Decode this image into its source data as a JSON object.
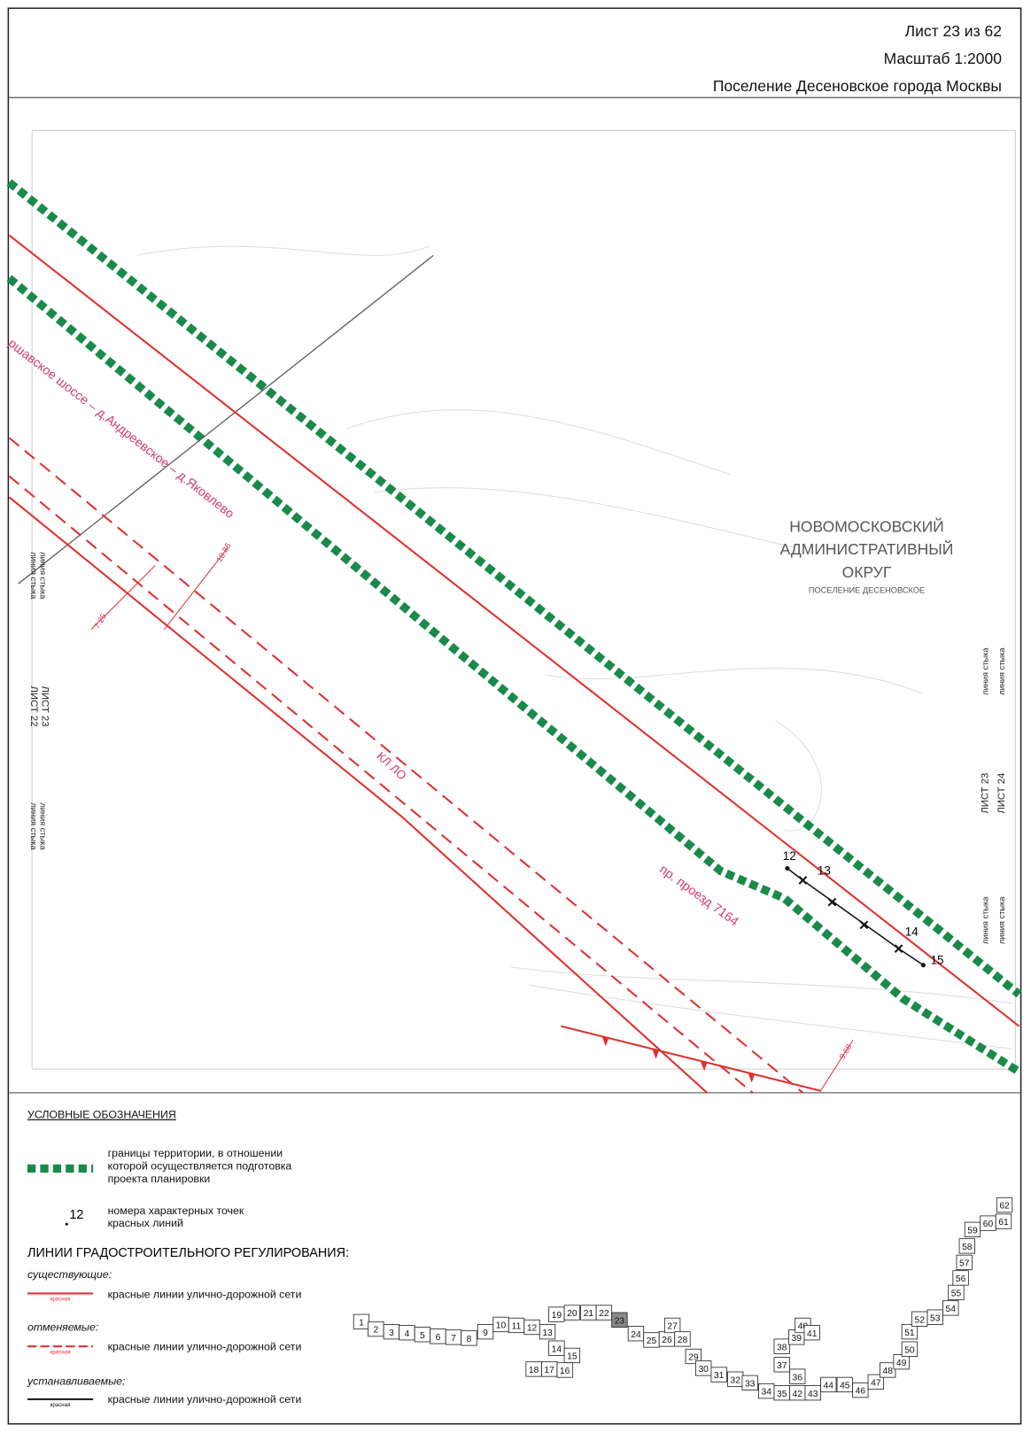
{
  "header": {
    "sheet": "Лист 23 из 62",
    "scale": "Масштаб 1:2000",
    "settlement": "Поселение Десеновское города Москвы"
  },
  "map": {
    "district": [
      "НОВОМОСКОВСКИЙ",
      "АДМИНИСТРАТИВНЫЙ",
      "ОКРУГ"
    ],
    "settlement": "ПОСЕЛЕНИЕ ДЕСЕНОВСКОЕ",
    "road": "ршавское шоссе – д.Андреевское – д.Яковлево",
    "cable": "КЛ ЛО",
    "passage": "пр. проезд 7164",
    "dimensions": [
      "18.86",
      "7.25",
      "9.68"
    ],
    "points": [
      "12",
      "13",
      "14",
      "15"
    ],
    "left_sheets": [
      "ЛИСТ 23",
      "ЛИСТ 22"
    ],
    "right_sheets": [
      "ЛИСТ 23",
      "ЛИСТ 24"
    ],
    "junction": "линия стыка"
  },
  "legend": {
    "title": "УСЛОВНЫЕ ОБОЗНАЧЕНИЯ",
    "boundary": [
      "границы территории, в отношении",
      "которой осуществляется подготовка",
      "проекта планировки"
    ],
    "point_sample": "12",
    "points": [
      "номера характерных точек",
      "красных линий"
    ],
    "regulation": "ЛИНИИ ГРАДОСТРОИТЕЛЬНОГО РЕГУЛИРОВАНИЯ:",
    "existing": "существующие:",
    "cancelled": "отменяемые:",
    "established": "устанавливаемые:",
    "red_lines": "красные линии улично-дорожной сети",
    "sample_label": "красная"
  },
  "index": {
    "sheets": [
      "1",
      "2",
      "3",
      "4",
      "5",
      "6",
      "7",
      "8",
      "9",
      "10",
      "11",
      "12",
      "13",
      "14",
      "15",
      "16",
      "17",
      "18",
      "19",
      "20",
      "21",
      "22",
      "23",
      "24",
      "25",
      "26",
      "27",
      "28",
      "29",
      "30",
      "31",
      "32",
      "33",
      "34",
      "35",
      "36",
      "37",
      "38",
      "39",
      "40",
      "41",
      "42",
      "43",
      "44",
      "45",
      "46",
      "47",
      "48",
      "49",
      "50",
      "51",
      "52",
      "53",
      "54",
      "55",
      "56",
      "57",
      "58",
      "59",
      "60",
      "61",
      "62"
    ]
  }
}
